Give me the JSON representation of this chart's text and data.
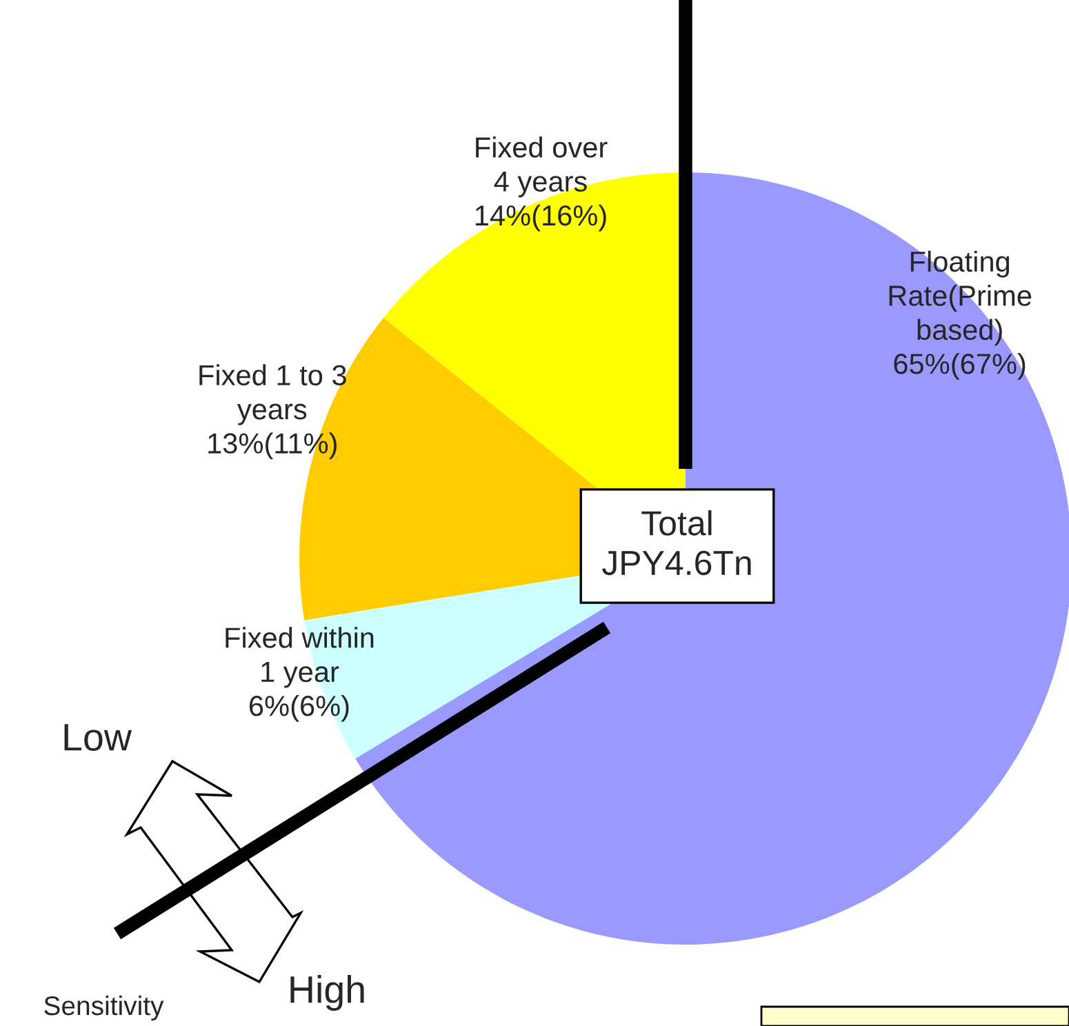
{
  "chart_data": {
    "type": "pie",
    "categories": [
      "Floating\nRate(Prime\nbased)",
      "Fixed within\n1 year",
      "Fixed 1 to 3\nyears",
      "Fixed over\n4 years"
    ],
    "values": [
      65,
      6,
      13,
      14
    ],
    "value_labels": [
      "65%(67%)",
      "6%(6%)",
      "13%(11%)",
      "14%(16%)"
    ],
    "colors": [
      "#9999ff",
      "#ccffff",
      "#ffcc00",
      "#ffff00"
    ],
    "annotations": [
      "Total\nJPY4.6Tn",
      "Low",
      "High",
      "Sensitivity"
    ]
  }
}
